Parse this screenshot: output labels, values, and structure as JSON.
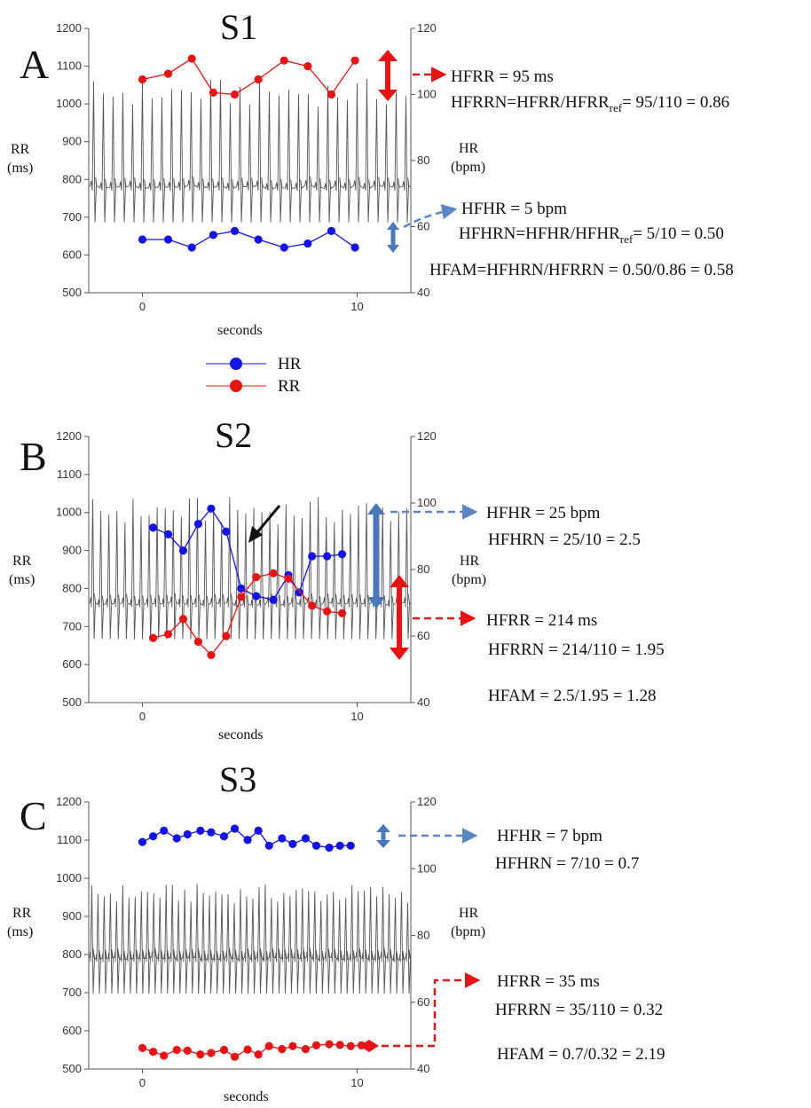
{
  "legend": [
    {
      "label": "HR",
      "color": "#1414e6"
    },
    {
      "label": "RR",
      "color": "#e61414"
    }
  ],
  "chart_data": [
    {
      "type": "line",
      "panel": "A",
      "title": "S1",
      "xlabel": "seconds",
      "ylabel_left": [
        "RR",
        "(ms)"
      ],
      "ylabel_right": [
        "HR",
        "(bpm)"
      ],
      "xlim": [
        -2.5,
        12.5
      ],
      "ylim_left": [
        500,
        1200
      ],
      "ylim_right": [
        40,
        120
      ],
      "xticks": [
        0,
        10
      ],
      "yticks_left": [
        500,
        600,
        700,
        800,
        900,
        1000,
        1100,
        1200
      ],
      "yticks_right": [
        40,
        60,
        80,
        100,
        120
      ],
      "ecg_baseline": 780,
      "ecg_peak": 1030,
      "ecg_beats": 33,
      "series": [
        {
          "name": "RR",
          "axis": "left",
          "color": "#e61414",
          "x": [
            0,
            1.2,
            2.3,
            3.3,
            4.3,
            5.4,
            6.6,
            7.7,
            8.8,
            9.9
          ],
          "values": [
            1065,
            1080,
            1120,
            1030,
            1025,
            1065,
            1115,
            1100,
            1025,
            1115
          ]
        },
        {
          "name": "HR",
          "axis": "right",
          "color": "#1414e6",
          "x": [
            0,
            1.2,
            2.3,
            3.3,
            4.3,
            5.4,
            6.6,
            7.7,
            8.8,
            9.9
          ],
          "values": [
            56.1,
            56.1,
            53.7,
            57.5,
            58.7,
            56.1,
            53.7,
            54.9,
            58.7,
            53.7
          ]
        }
      ],
      "annotations": [
        "HFRR = 95 ms",
        "HFRRN=HFRR/HFRR",
        "ref",
        "= 95/110 = 0.86",
        "HFHR = 5 bpm",
        "HFHRN=HFHR/HFHR",
        "ref",
        "= 5/10 = 0.50",
        "HFAM=HFHRN/HFRRN = 0.50/0.86 = 0.58"
      ]
    },
    {
      "type": "line",
      "panel": "B",
      "title": "S2",
      "xlabel": "seconds",
      "ylabel_left": [
        "RR",
        "(ms)"
      ],
      "ylabel_right": [
        "HR",
        "(bpm)"
      ],
      "xlim": [
        -2.5,
        12.5
      ],
      "ylim_left": [
        500,
        1200
      ],
      "ylim_right": [
        40,
        120
      ],
      "xticks": [
        0,
        10
      ],
      "yticks_left": [
        500,
        600,
        700,
        800,
        900,
        1000,
        1100,
        1200
      ],
      "yticks_right": [
        40,
        60,
        80,
        100,
        120
      ],
      "ecg_baseline": 760,
      "ecg_peak": 1005,
      "ecg_beats": 40,
      "series": [
        {
          "name": "HR",
          "axis": "right",
          "color": "#1414e6",
          "x": [
            0.5,
            1.2,
            1.9,
            2.6,
            3.2,
            3.9,
            4.6,
            5.3,
            6.1,
            6.8,
            7.3,
            7.9,
            8.6,
            9.3
          ],
          "values": [
            92.6,
            90.6,
            85.7,
            93.7,
            98.3,
            91.4,
            74.3,
            72.0,
            70.9,
            78.3,
            73.1,
            84.0,
            84.0,
            84.6
          ]
        },
        {
          "name": "RR",
          "axis": "left",
          "color": "#e61414",
          "x": [
            0.5,
            1.2,
            1.9,
            2.6,
            3.2,
            3.9,
            4.6,
            5.3,
            6.1,
            6.8,
            7.9,
            8.6,
            9.3
          ],
          "values": [
            670,
            680,
            720,
            660,
            625,
            675,
            778,
            830,
            840,
            826,
            755,
            740,
            735
          ]
        }
      ],
      "annotations": [
        "HFHR = 25 bpm",
        "HFHRN = 25/10 = 2.5",
        "HFRR = 214 ms",
        "HFRRN = 214/110 = 1.95",
        "HFAM = 2.5/1.95 = 1.28"
      ]
    },
    {
      "type": "line",
      "panel": "C",
      "title": "S3",
      "xlabel": "seconds",
      "ylabel_left": [
        "RR",
        "(ms)"
      ],
      "ylabel_right": [
        "HR",
        "(bpm)"
      ],
      "xlim": [
        -2.5,
        12.5
      ],
      "ylim_left": [
        500,
        1200
      ],
      "ylim_right": [
        40,
        120
      ],
      "xticks": [
        0,
        10
      ],
      "yticks_left": [
        500,
        600,
        700,
        800,
        900,
        1000,
        1100,
        1200
      ],
      "yticks_right": [
        40,
        60,
        80,
        100,
        120
      ],
      "ecg_baseline": 790,
      "ecg_peak": 960,
      "ecg_beats": 52,
      "series": [
        {
          "name": "HR",
          "axis": "right",
          "color": "#1414e6",
          "x": [
            0,
            0.5,
            1.0,
            1.6,
            2.1,
            2.7,
            3.2,
            3.8,
            4.3,
            4.9,
            5.4,
            5.9,
            6.5,
            7.0,
            7.6,
            8.1,
            8.7,
            9.2,
            9.7
          ],
          "values": [
            108.0,
            109.7,
            111.4,
            109.1,
            110.3,
            111.4,
            110.9,
            109.7,
            112.0,
            108.6,
            111.4,
            106.9,
            109.1,
            107.4,
            109.1,
            106.9,
            106.3,
            106.9,
            106.9
          ]
        },
        {
          "name": "RR",
          "axis": "left",
          "color": "#e61414",
          "x": [
            0,
            0.5,
            1.0,
            1.6,
            2.1,
            2.7,
            3.2,
            3.8,
            4.3,
            4.9,
            5.4,
            5.9,
            6.5,
            7.0,
            7.6,
            8.1,
            8.7,
            9.2,
            9.7,
            10.2
          ],
          "values": [
            555,
            545,
            535,
            550,
            548,
            538,
            542,
            550,
            532,
            551,
            538,
            560,
            552,
            560,
            552,
            562,
            565,
            563,
            560,
            562
          ]
        }
      ],
      "annotations": [
        "HFHR = 7 bpm",
        "HFHRN = 7/10 = 0.7",
        "HFRR = 35 ms",
        "HFRRN = 35/110 = 0.32",
        "HFAM = 0.7/0.32 = 2.19"
      ]
    }
  ]
}
